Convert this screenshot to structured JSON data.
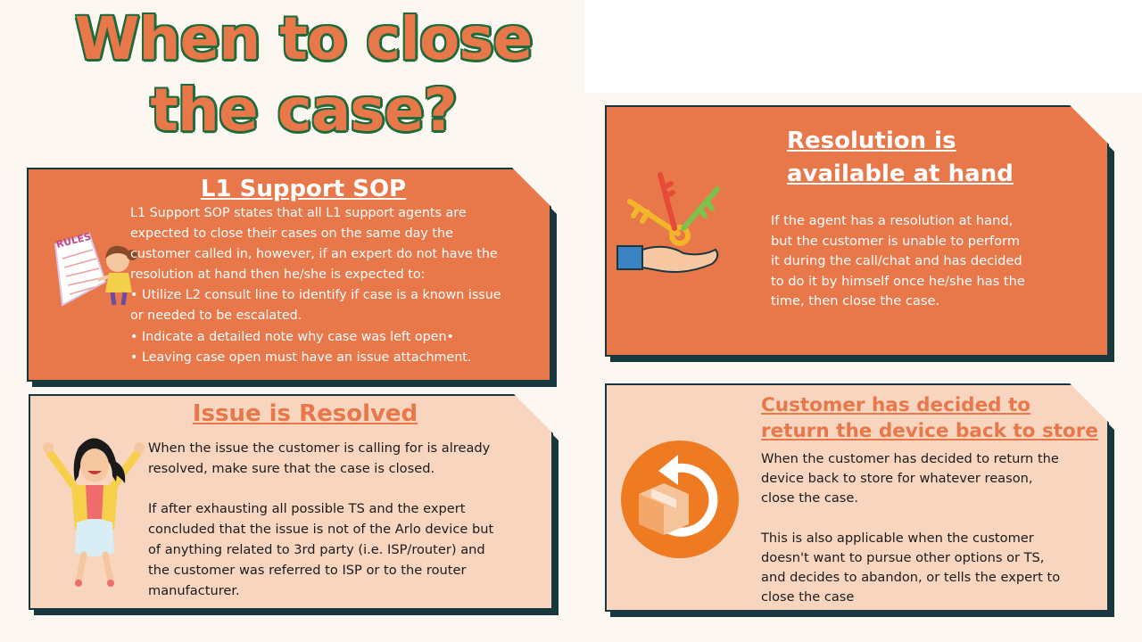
{
  "page": {
    "title_line1": "When to close",
    "title_line2": "the case?"
  },
  "colors": {
    "orange": "#e8774a",
    "peach": "#f7d5bf",
    "dark_outline": "#17383f",
    "title_outline": "#1f6b3a"
  },
  "cards": {
    "l1": {
      "heading": "L1 Support SOP",
      "icon": "rules-girl-illustration",
      "icon_text": "RULES",
      "lines": [
        "L1 Support SOP states that all L1 support agents are",
        "expected to close their cases on the same day the",
        "customer called in, however, if an expert do not have the",
        "resolution at hand then he/she is expected to:",
        "• Utilize L2 consult line to identify if case is a known issue",
        "or needed to be escalated.",
        "• Indicate a detailed note why case was left open•",
        "• Leaving case open must have an issue attachment."
      ]
    },
    "resolved": {
      "heading": "Issue is Resolved",
      "icon": "jumping-woman-illustration",
      "para1": [
        "When the issue the customer is calling for is already",
        "resolved, make sure that the case is closed."
      ],
      "para2": [
        "If after exhausting all possible TS and the expert",
        "concluded that the issue is not of the Arlo device but",
        "of anything related to 3rd party (i.e. ISP/router) and",
        "the customer was referred to ISP or to the router",
        "manufacturer."
      ]
    },
    "resolution": {
      "heading_line1": "Resolution is",
      "heading_line2": "available at hand",
      "icon": "keys-in-hand-icon",
      "lines": [
        "If the agent has a resolution at hand,",
        "but the customer is unable to perform",
        "it during the call/chat and has decided",
        "to do it by himself once he/she has the",
        "time, then close the case."
      ]
    },
    "return": {
      "heading_line1": "Customer has decided to",
      "heading_line2": "return the device back to store",
      "icon": "return-box-icon",
      "para1": [
        "When the customer has decided to return the",
        "device back to store for whatever reason,",
        "close the case."
      ],
      "para2": [
        "This is also applicable when the customer",
        "doesn't want to pursue other options or TS,",
        "and decides to abandon, or tells the expert to",
        "close the case"
      ]
    }
  }
}
